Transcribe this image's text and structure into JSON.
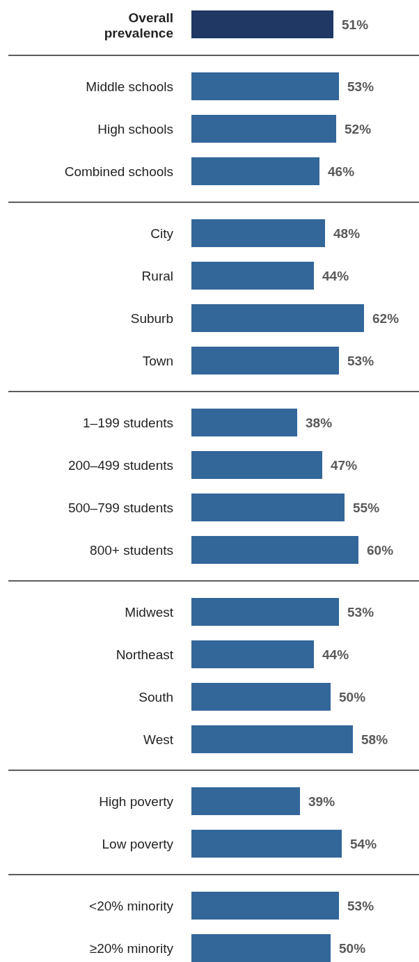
{
  "chart_data": {
    "type": "bar",
    "orientation": "horizontal",
    "categories": [
      "Overall prevalence",
      "Middle schools",
      "High schools",
      "Combined schools",
      "City",
      "Rural",
      "Suburb",
      "Town",
      "1–199 students",
      "200–499 students",
      "500–799 students",
      "800+ students",
      "Midwest",
      "Northeast",
      "South",
      "West",
      "High poverty",
      "Low poverty",
      "<20% minority",
      "≥20% minority"
    ],
    "values": [
      51,
      53,
      52,
      46,
      48,
      44,
      62,
      53,
      38,
      47,
      55,
      60,
      53,
      44,
      50,
      58,
      39,
      54,
      53,
      50
    ],
    "value_labels": [
      "51%",
      "53%",
      "52%",
      "46%",
      "48%",
      "44%",
      "62%",
      "53%",
      "38%",
      "47%",
      "55%",
      "60%",
      "53%",
      "44%",
      "50%",
      "58%",
      "39%",
      "54%",
      "53%",
      "50%"
    ],
    "colors": [
      "#1f3864",
      "#336699",
      "#336699",
      "#336699",
      "#336699",
      "#336699",
      "#336699",
      "#336699",
      "#336699",
      "#336699",
      "#336699",
      "#336699",
      "#336699",
      "#336699",
      "#336699",
      "#336699",
      "#336699",
      "#336699",
      "#336699",
      "#336699"
    ]
  }
}
